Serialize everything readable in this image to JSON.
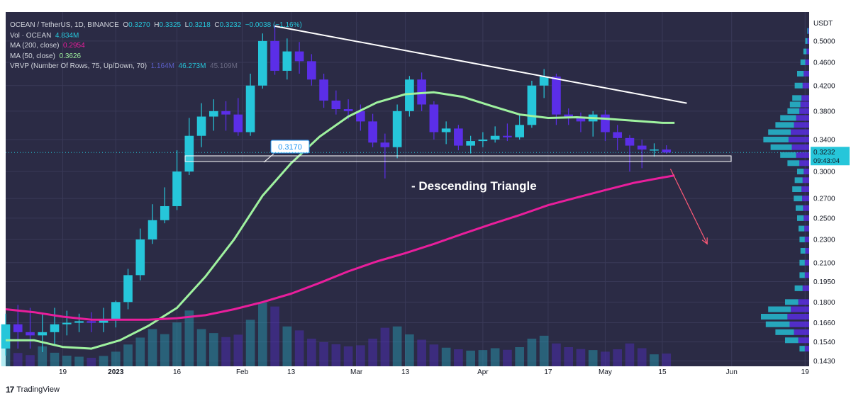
{
  "legend": {
    "symbol": "OCEAN / TetherUS, 1D, BINANCE",
    "o_label": "O",
    "o": "0.3270",
    "h_label": "H",
    "h": "0.3325",
    "l_label": "L",
    "l": "0.3218",
    "c_label": "C",
    "c": "0.3232",
    "change": "−0.0038 (−1.16%)",
    "vol_label": "Vol · OCEAN",
    "vol": "4.834M",
    "ma200_label": "MA (200, close)",
    "ma200": "0.2954",
    "ma50_label": "MA (50, close)",
    "ma50": "0.3626",
    "vrvp_label": "VRVP (Number Of Rows, 75, Up/Down, 70)",
    "vrvp_up": "1.164M",
    "vrvp_total": "46.273M",
    "vrvp_down": "45.109M"
  },
  "footer": {
    "logo": "17",
    "brand": "TradingView"
  },
  "colors": {
    "background": "#2b2b45",
    "grid": "#3a3a58",
    "up": "#26c6da",
    "down": "#5b2ee8",
    "ma50": "#9ff29f",
    "ma200": "#e91e9c",
    "axis_text": "#d1d4dc"
  },
  "chart_data": {
    "type": "candlestick",
    "currency": "USDT",
    "y_scale": "log",
    "ylim": [
      0.14,
      0.56
    ],
    "y_ticks": [
      "0.5000",
      "0.4600",
      "0.4200",
      "0.3800",
      "0.3400",
      "0.3000",
      "0.2700",
      "0.2500",
      "0.2300",
      "0.2100",
      "0.1950",
      "0.1800",
      "0.1660",
      "0.1540",
      "0.1430"
    ],
    "x_ticks": [
      "19",
      "2023",
      "16",
      "Feb",
      "13",
      "Mar",
      "13",
      "Apr",
      "17",
      "May",
      "15",
      "Jun",
      "19"
    ],
    "x_tick_dates": [
      "2022-12-19",
      "2023-01-01",
      "2023-01-16",
      "2023-02-01",
      "2023-02-13",
      "2023-03-01",
      "2023-03-13",
      "2023-04-01",
      "2023-04-17",
      "2023-05-01",
      "2023-05-15",
      "2023-06-01",
      "2023-06-19"
    ],
    "xlim": [
      "2022-12-05",
      "2023-06-20"
    ],
    "last_price": "0.3232",
    "countdown": "09:43:04",
    "support_label": "0.3170",
    "support_range": [
      0.312,
      0.319
    ],
    "annotation": "- Descending Triangle",
    "trendline": {
      "from": [
        "2023-02-09",
        0.53
      ],
      "to": [
        "2023-05-21",
        0.392
      ]
    },
    "arrow": {
      "from": [
        "2023-05-17",
        0.303
      ],
      "to": [
        "2023-05-26",
        0.226
      ]
    },
    "series": [
      {
        "name": "OCEAN / TetherUS",
        "x": [
          "2022-12-05",
          "2022-12-08",
          "2022-12-11",
          "2022-12-14",
          "2022-12-17",
          "2022-12-20",
          "2022-12-23",
          "2022-12-26",
          "2022-12-29",
          "2023-01-01",
          "2023-01-04",
          "2023-01-07",
          "2023-01-10",
          "2023-01-13",
          "2023-01-16",
          "2023-01-19",
          "2023-01-22",
          "2023-01-25",
          "2023-01-28",
          "2023-01-31",
          "2023-02-03",
          "2023-02-06",
          "2023-02-09",
          "2023-02-12",
          "2023-02-15",
          "2023-02-18",
          "2023-02-21",
          "2023-02-24",
          "2023-02-27",
          "2023-03-02",
          "2023-03-05",
          "2023-03-08",
          "2023-03-11",
          "2023-03-14",
          "2023-03-17",
          "2023-03-20",
          "2023-03-23",
          "2023-03-26",
          "2023-03-29",
          "2023-04-01",
          "2023-04-04",
          "2023-04-07",
          "2023-04-10",
          "2023-04-13",
          "2023-04-16",
          "2023-04-19",
          "2023-04-22",
          "2023-04-25",
          "2023-04-28",
          "2023-05-01",
          "2023-05-04",
          "2023-05-07",
          "2023-05-10",
          "2023-05-13",
          "2023-05-16"
        ],
        "open": [
          0.15,
          0.165,
          0.16,
          0.158,
          0.16,
          0.165,
          0.166,
          0.167,
          0.166,
          0.168,
          0.18,
          0.2,
          0.23,
          0.248,
          0.262,
          0.3,
          0.345,
          0.372,
          0.38,
          0.375,
          0.35,
          0.42,
          0.5,
          0.445,
          0.48,
          0.462,
          0.43,
          0.396,
          0.383,
          0.38,
          0.365,
          0.336,
          0.33,
          0.38,
          0.43,
          0.39,
          0.35,
          0.355,
          0.332,
          0.338,
          0.34,
          0.345,
          0.343,
          0.36,
          0.42,
          0.435,
          0.375,
          0.372,
          0.365,
          0.375,
          0.35,
          0.342,
          0.332,
          0.327,
          0.327
        ],
        "high": [
          0.172,
          0.178,
          0.176,
          0.172,
          0.176,
          0.174,
          0.172,
          0.173,
          0.176,
          0.181,
          0.205,
          0.24,
          0.264,
          0.282,
          0.326,
          0.37,
          0.392,
          0.398,
          0.395,
          0.4,
          0.44,
          0.515,
          0.532,
          0.505,
          0.498,
          0.475,
          0.44,
          0.412,
          0.398,
          0.39,
          0.376,
          0.348,
          0.39,
          0.436,
          0.442,
          0.395,
          0.365,
          0.36,
          0.345,
          0.35,
          0.358,
          0.362,
          0.375,
          0.428,
          0.448,
          0.44,
          0.384,
          0.378,
          0.38,
          0.382,
          0.36,
          0.346,
          0.34,
          0.335,
          0.3325
        ],
        "low": [
          0.146,
          0.15,
          0.15,
          0.148,
          0.152,
          0.158,
          0.16,
          0.16,
          0.16,
          0.163,
          0.175,
          0.196,
          0.226,
          0.245,
          0.258,
          0.296,
          0.33,
          0.352,
          0.352,
          0.345,
          0.345,
          0.415,
          0.438,
          0.43,
          0.44,
          0.42,
          0.385,
          0.375,
          0.368,
          0.352,
          0.33,
          0.292,
          0.316,
          0.372,
          0.38,
          0.34,
          0.334,
          0.326,
          0.322,
          0.33,
          0.336,
          0.338,
          0.34,
          0.356,
          0.4,
          0.36,
          0.36,
          0.35,
          0.344,
          0.338,
          0.326,
          0.3,
          0.304,
          0.318,
          0.3218
        ],
        "close": [
          0.165,
          0.16,
          0.158,
          0.16,
          0.165,
          0.166,
          0.167,
          0.166,
          0.168,
          0.18,
          0.2,
          0.23,
          0.248,
          0.262,
          0.3,
          0.345,
          0.372,
          0.38,
          0.375,
          0.35,
          0.42,
          0.5,
          0.445,
          0.48,
          0.462,
          0.43,
          0.396,
          0.383,
          0.38,
          0.365,
          0.336,
          0.33,
          0.38,
          0.43,
          0.39,
          0.35,
          0.355,
          0.332,
          0.338,
          0.34,
          0.345,
          0.343,
          0.36,
          0.42,
          0.435,
          0.375,
          0.372,
          0.365,
          0.375,
          0.35,
          0.342,
          0.332,
          0.327,
          0.327,
          0.3232
        ],
        "volume": [
          6.5,
          5.0,
          4.2,
          7.5,
          5.1,
          4.0,
          3.6,
          3.2,
          3.9,
          5.5,
          8.2,
          10.8,
          14.0,
          12.1,
          16.5,
          21.0,
          14.0,
          12.5,
          11.0,
          11.9,
          17.5,
          24.0,
          22.5,
          15.0,
          13.5,
          10.4,
          9.1,
          8.3,
          7.5,
          7.9,
          10.4,
          14.5,
          15.0,
          12.0,
          10.0,
          8.2,
          7.0,
          6.4,
          5.9,
          6.1,
          6.8,
          6.2,
          7.2,
          10.4,
          11.5,
          8.6,
          7.2,
          6.5,
          6.1,
          5.5,
          6.4,
          8.6,
          6.8,
          4.5,
          4.8
        ]
      },
      {
        "name": "MA (50, close)",
        "x": [
          "2022-12-05",
          "2022-12-12",
          "2022-12-19",
          "2022-12-26",
          "2023-01-02",
          "2023-01-09",
          "2023-01-16",
          "2023-01-23",
          "2023-01-30",
          "2023-02-06",
          "2023-02-13",
          "2023-02-20",
          "2023-02-27",
          "2023-03-06",
          "2023-03-13",
          "2023-03-20",
          "2023-03-27",
          "2023-04-03",
          "2023-04-10",
          "2023-04-17",
          "2023-04-24",
          "2023-05-01",
          "2023-05-08",
          "2023-05-15",
          "2023-05-18"
        ],
        "values": [
          0.155,
          0.155,
          0.151,
          0.15,
          0.155,
          0.164,
          0.176,
          0.199,
          0.23,
          0.273,
          0.31,
          0.344,
          0.372,
          0.393,
          0.406,
          0.409,
          0.402,
          0.388,
          0.375,
          0.37,
          0.371,
          0.369,
          0.366,
          0.363,
          0.363
        ]
      },
      {
        "name": "MA (200, close)",
        "x": [
          "2022-12-05",
          "2022-12-12",
          "2022-12-19",
          "2022-12-26",
          "2023-01-02",
          "2023-01-09",
          "2023-01-16",
          "2023-01-23",
          "2023-01-30",
          "2023-02-06",
          "2023-02-13",
          "2023-02-20",
          "2023-02-27",
          "2023-03-06",
          "2023-03-13",
          "2023-03-20",
          "2023-03-27",
          "2023-04-03",
          "2023-04-10",
          "2023-04-17",
          "2023-04-24",
          "2023-05-01",
          "2023-05-08",
          "2023-05-15",
          "2023-05-18"
        ],
        "values": [
          0.175,
          0.173,
          0.17,
          0.168,
          0.168,
          0.168,
          0.169,
          0.171,
          0.175,
          0.18,
          0.186,
          0.194,
          0.203,
          0.211,
          0.218,
          0.226,
          0.235,
          0.244,
          0.253,
          0.263,
          0.271,
          0.279,
          0.287,
          0.293,
          0.2954
        ]
      }
    ],
    "volume_profile": {
      "price_levels": [
        0.15,
        0.155,
        0.16,
        0.165,
        0.17,
        0.175,
        0.18,
        0.19,
        0.2,
        0.21,
        0.22,
        0.23,
        0.24,
        0.25,
        0.26,
        0.27,
        0.28,
        0.29,
        0.3,
        0.31,
        0.32,
        0.33,
        0.34,
        0.35,
        0.36,
        0.37,
        0.38,
        0.39,
        0.4,
        0.42,
        0.44,
        0.46,
        0.48,
        0.5,
        0.52
      ],
      "volumes": [
        0.2,
        0.5,
        0.7,
        0.9,
        1.0,
        0.85,
        0.5,
        0.3,
        0.2,
        0.2,
        0.18,
        0.2,
        0.22,
        0.25,
        0.28,
        0.32,
        0.35,
        0.3,
        0.25,
        0.45,
        0.6,
        0.8,
        0.95,
        0.85,
        0.7,
        0.6,
        0.45,
        0.4,
        0.35,
        0.3,
        0.25,
        0.18,
        0.12,
        0.08,
        0.04
      ]
    }
  }
}
